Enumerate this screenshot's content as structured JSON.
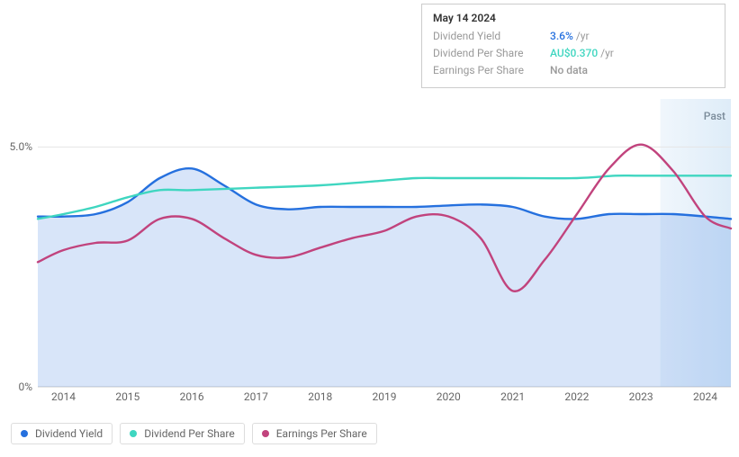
{
  "tooltip": {
    "date": "May 14 2024",
    "rows": [
      {
        "label": "Dividend Yield",
        "value": "3.6%",
        "unit": "/yr",
        "color": "#2570de"
      },
      {
        "label": "Dividend Per Share",
        "value": "AU$0.370",
        "unit": "/yr",
        "color": "#3fd6c0"
      },
      {
        "label": "Earnings Per Share",
        "value": "No data",
        "unit": "",
        "color": "#999"
      }
    ]
  },
  "chart": {
    "type": "line",
    "ylim": [
      0,
      6
    ],
    "y_ticks": [
      {
        "pos": 0,
        "label": "0%"
      },
      {
        "pos": 5,
        "label": "5.0%"
      }
    ],
    "x_years": [
      2014,
      2015,
      2016,
      2017,
      2018,
      2019,
      2020,
      2021,
      2022,
      2023,
      2024
    ],
    "x_start": 2013.6,
    "x_end": 2024.4,
    "past_label": "Past",
    "past_shade_start": 2023.3,
    "past_shade_color_from": "#eaf3fb",
    "past_shade_color_to": "#d0e4f5",
    "background_color": "#ffffff",
    "grid_color": "#e5e5e5",
    "series": [
      {
        "name": "Dividend Yield",
        "color": "#2570de",
        "fill": "rgba(37,112,222,0.18)",
        "width": 2.4,
        "area": true,
        "points": [
          [
            2013.6,
            3.55
          ],
          [
            2014.0,
            3.55
          ],
          [
            2014.5,
            3.6
          ],
          [
            2015.0,
            3.85
          ],
          [
            2015.5,
            4.35
          ],
          [
            2016.0,
            4.55
          ],
          [
            2016.5,
            4.2
          ],
          [
            2017.0,
            3.8
          ],
          [
            2017.5,
            3.7
          ],
          [
            2018.0,
            3.75
          ],
          [
            2018.5,
            3.75
          ],
          [
            2019.0,
            3.75
          ],
          [
            2019.5,
            3.75
          ],
          [
            2020.0,
            3.78
          ],
          [
            2020.5,
            3.8
          ],
          [
            2021.0,
            3.75
          ],
          [
            2021.5,
            3.55
          ],
          [
            2022.0,
            3.5
          ],
          [
            2022.5,
            3.6
          ],
          [
            2023.0,
            3.6
          ],
          [
            2023.5,
            3.6
          ],
          [
            2024.0,
            3.55
          ],
          [
            2024.4,
            3.5
          ]
        ]
      },
      {
        "name": "Dividend Per Share",
        "color": "#3fd6c0",
        "width": 2.4,
        "area": false,
        "points": [
          [
            2013.6,
            3.5
          ],
          [
            2014.0,
            3.6
          ],
          [
            2014.5,
            3.75
          ],
          [
            2015.0,
            3.95
          ],
          [
            2015.5,
            4.1
          ],
          [
            2016.0,
            4.1
          ],
          [
            2017.0,
            4.15
          ],
          [
            2018.0,
            4.2
          ],
          [
            2019.0,
            4.3
          ],
          [
            2019.5,
            4.35
          ],
          [
            2020.0,
            4.35
          ],
          [
            2021.0,
            4.35
          ],
          [
            2022.0,
            4.35
          ],
          [
            2022.6,
            4.4
          ],
          [
            2023.0,
            4.4
          ],
          [
            2024.0,
            4.4
          ],
          [
            2024.4,
            4.4
          ]
        ]
      },
      {
        "name": "Earnings Per Share",
        "color": "#c1437d",
        "width": 2.4,
        "area": false,
        "points": [
          [
            2013.6,
            2.6
          ],
          [
            2014.0,
            2.85
          ],
          [
            2014.5,
            3.0
          ],
          [
            2015.0,
            3.05
          ],
          [
            2015.5,
            3.5
          ],
          [
            2016.0,
            3.5
          ],
          [
            2016.5,
            3.1
          ],
          [
            2017.0,
            2.75
          ],
          [
            2017.5,
            2.7
          ],
          [
            2018.0,
            2.9
          ],
          [
            2018.5,
            3.1
          ],
          [
            2019.0,
            3.25
          ],
          [
            2019.5,
            3.55
          ],
          [
            2020.0,
            3.55
          ],
          [
            2020.5,
            3.1
          ],
          [
            2021.0,
            2.0
          ],
          [
            2021.5,
            2.65
          ],
          [
            2022.0,
            3.6
          ],
          [
            2022.5,
            4.55
          ],
          [
            2023.0,
            5.05
          ],
          [
            2023.5,
            4.5
          ],
          [
            2024.0,
            3.55
          ],
          [
            2024.4,
            3.3
          ]
        ]
      }
    ]
  },
  "legend": [
    {
      "label": "Dividend Yield",
      "color": "#2570de"
    },
    {
      "label": "Dividend Per Share",
      "color": "#3fd6c0"
    },
    {
      "label": "Earnings Per Share",
      "color": "#c1437d"
    }
  ]
}
